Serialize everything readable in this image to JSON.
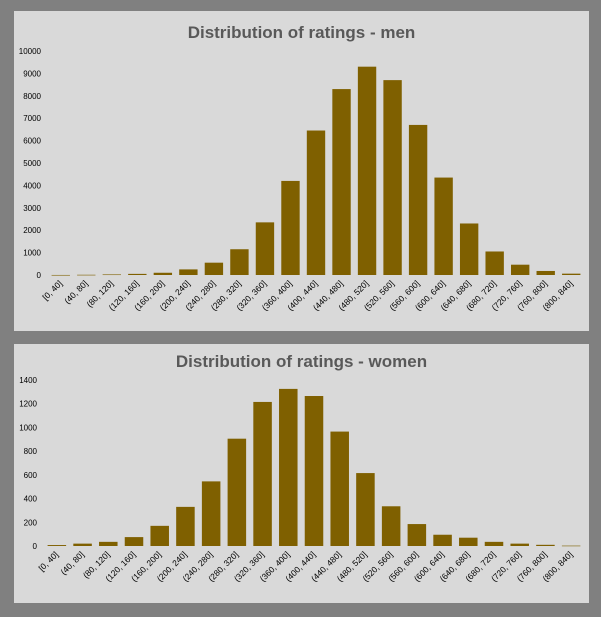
{
  "colors": {
    "bar": "#7f6000",
    "panel": "#d9d9d9",
    "background": "#808080",
    "title": "#595959"
  },
  "chart_data": [
    {
      "type": "bar",
      "title": "Distribution of ratings - men",
      "xlabel": "",
      "ylabel": "",
      "ylim": [
        0,
        10000
      ],
      "yticks": [
        0,
        1000,
        2000,
        3000,
        4000,
        5000,
        6000,
        7000,
        8000,
        9000,
        10000
      ],
      "categories": [
        "[0, 40]",
        "(40, 80]",
        "(80, 120]",
        "(120, 160]",
        "(160, 200]",
        "(200, 240]",
        "(240, 280]",
        "(280, 320]",
        "(320, 360]",
        "(360, 400]",
        "(400, 440]",
        "(440, 480]",
        "(480, 520]",
        "(520, 560]",
        "(560, 600]",
        "(600, 640]",
        "(640, 680]",
        "(680, 720]",
        "(720, 760]",
        "(760, 800]",
        "(800, 840]"
      ],
      "values": [
        2,
        10,
        25,
        50,
        100,
        250,
        550,
        1150,
        2350,
        4200,
        6450,
        8300,
        9300,
        8700,
        6700,
        4350,
        2300,
        1050,
        460,
        180,
        60
      ]
    },
    {
      "type": "bar",
      "title": "Distribution of ratings - women",
      "xlabel": "",
      "ylabel": "",
      "ylim": [
        0,
        1400
      ],
      "yticks": [
        0,
        200,
        400,
        600,
        800,
        1000,
        1200,
        1400
      ],
      "categories": [
        "[0, 40]",
        "(40, 80]",
        "(80, 120]",
        "(120, 160]",
        "(160, 200]",
        "(200, 240]",
        "(240, 280]",
        "(280, 320]",
        "(320, 360]",
        "(360, 400]",
        "(400, 440]",
        "(440, 480]",
        "(480, 520]",
        "(520, 560]",
        "(560, 600]",
        "(600, 640]",
        "(640, 680]",
        "(680, 720]",
        "(720, 760]",
        "(760, 800]",
        "(800, 840]"
      ],
      "values": [
        8,
        20,
        35,
        75,
        170,
        330,
        545,
        905,
        1215,
        1325,
        1265,
        965,
        615,
        335,
        185,
        95,
        70,
        35,
        20,
        10,
        3
      ]
    }
  ]
}
